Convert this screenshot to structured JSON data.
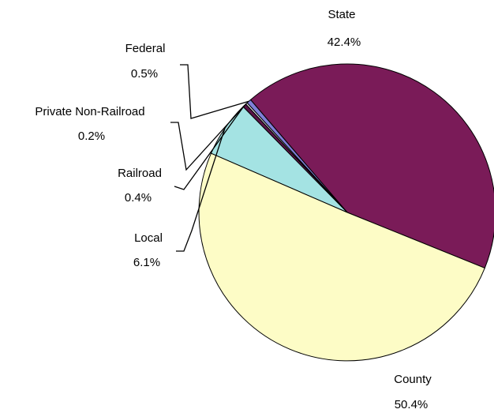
{
  "chart_data": {
    "type": "pie",
    "slices": [
      {
        "label": "State",
        "value": 42.4,
        "value_label": "42.4%",
        "color": "#7a1b58"
      },
      {
        "label": "County",
        "value": 50.4,
        "value_label": "50.4%",
        "color": "#fdfcc6"
      },
      {
        "label": "Local",
        "value": 6.1,
        "value_label": "6.1%",
        "color": "#a4e3e3"
      },
      {
        "label": "Railroad",
        "value": 0.4,
        "value_label": "0.4%",
        "color": "#5a1348"
      },
      {
        "label": "Private Non-Railroad",
        "value": 0.2,
        "value_label": "0.2%",
        "color": "#e8e8f0"
      },
      {
        "label": "Federal",
        "value": 0.5,
        "value_label": "0.5%",
        "color": "#7f7fd8"
      }
    ]
  }
}
